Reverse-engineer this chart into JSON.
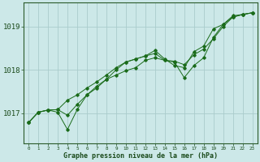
{
  "title": "Graphe pression niveau de la mer (hPa)",
  "bg_color": "#cce8e8",
  "grid_color": "#aacccc",
  "line_color": "#1a6b1a",
  "marker_color": "#1a6b1a",
  "xlim": [
    -0.5,
    23.5
  ],
  "ylim": [
    1016.3,
    1019.55
  ],
  "yticks": [
    1017,
    1018,
    1019
  ],
  "xticks": [
    0,
    1,
    2,
    3,
    4,
    5,
    6,
    7,
    8,
    9,
    10,
    11,
    12,
    13,
    14,
    15,
    16,
    17,
    18,
    19,
    20,
    21,
    22,
    23
  ],
  "line1": [
    1016.78,
    1017.02,
    1017.07,
    1017.08,
    1016.95,
    1017.2,
    1017.42,
    1017.62,
    1017.78,
    1017.88,
    1017.98,
    1018.05,
    1018.22,
    1018.28,
    1018.22,
    1018.18,
    1017.82,
    1018.1,
    1018.28,
    1018.75,
    1019.05,
    1019.25,
    1019.28,
    1019.32
  ],
  "line2": [
    1016.78,
    1017.02,
    1017.07,
    1017.08,
    1017.3,
    1017.42,
    1017.58,
    1017.72,
    1017.88,
    1018.05,
    1018.18,
    1018.25,
    1018.32,
    1018.38,
    1018.22,
    1018.2,
    1018.12,
    1018.35,
    1018.48,
    1018.72,
    1019.0,
    1019.22,
    1019.28,
    1019.32
  ],
  "line3": [
    1016.78,
    1017.02,
    1017.07,
    1017.02,
    1016.62,
    1017.08,
    1017.42,
    1017.58,
    1017.78,
    1018.0,
    1018.18,
    1018.25,
    1018.32,
    1018.45,
    1018.25,
    1018.1,
    1018.05,
    1018.42,
    1018.55,
    1018.95,
    1019.05,
    1019.22,
    1019.28,
    1019.32
  ]
}
